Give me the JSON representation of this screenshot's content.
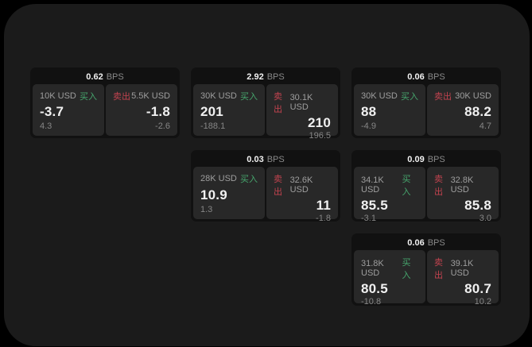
{
  "colors": {
    "page_bg": "#000000",
    "window_bg": "#1b1b1b",
    "card_bg": "#111111",
    "panel_bg": "#282828",
    "buy_green": "#46a56d",
    "sell_red": "#c2434f",
    "value_white": "#f1f1f1",
    "label_gray": "#9e9e9e",
    "sub_gray": "#868686",
    "bps_gray": "#8a8a8a"
  },
  "labels": {
    "buy": "买入",
    "sell": "卖出",
    "bps": "BPS"
  },
  "cards": [
    {
      "bps": "0.62",
      "buy": {
        "size": "10K USD",
        "value": "-3.7",
        "sub": "4.3"
      },
      "sell": {
        "size": "5.5K USD",
        "value": "-1.8",
        "sub": "-2.6"
      }
    },
    {
      "bps": "2.92",
      "buy": {
        "size": "30K USD",
        "value": "201",
        "sub": "-188.1"
      },
      "sell": {
        "size": "30.1K USD",
        "value": "210",
        "sub": "196.5"
      }
    },
    {
      "bps": "0.06",
      "buy": {
        "size": "30K USD",
        "value": "88",
        "sub": "-4.9"
      },
      "sell": {
        "size": "30K USD",
        "value": "88.2",
        "sub": "4.7"
      }
    },
    {
      "bps": "0.03",
      "buy": {
        "size": "28K USD",
        "value": "10.9",
        "sub": "1.3"
      },
      "sell": {
        "size": "32.6K USD",
        "value": "11",
        "sub": "-1.8"
      }
    },
    {
      "bps": "0.09",
      "buy": {
        "size": "34.1K USD",
        "value": "85.5",
        "sub": "-3.1"
      },
      "sell": {
        "size": "32.8K USD",
        "value": "85.8",
        "sub": "3.0"
      }
    },
    {
      "bps": "0.06",
      "buy": {
        "size": "31.8K USD",
        "value": "80.5",
        "sub": "-10.8"
      },
      "sell": {
        "size": "39.1K USD",
        "value": "80.7",
        "sub": "10.2"
      }
    }
  ]
}
